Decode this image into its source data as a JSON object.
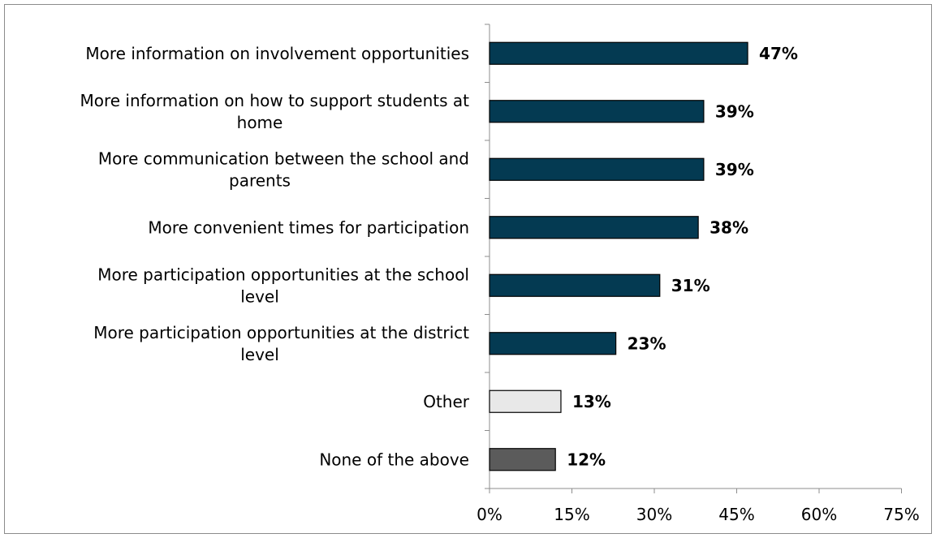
{
  "chart_data": {
    "type": "bar",
    "orientation": "horizontal",
    "title": "",
    "xlabel": "",
    "ylabel": "",
    "categories": [
      [
        "More information on involvement opportunities"
      ],
      [
        "More information on how to support students at",
        "home"
      ],
      [
        "More communication between the school and",
        "parents"
      ],
      [
        "More convenient times for participation"
      ],
      [
        "More participation opportunities at the school",
        "level"
      ],
      [
        "More participation opportunities at the district",
        "level"
      ],
      [
        "Other"
      ],
      [
        "None of the above"
      ]
    ],
    "values": [
      47,
      39,
      39,
      38,
      31,
      23,
      13,
      12
    ],
    "data_labels": [
      "47%",
      "39%",
      "39%",
      "38%",
      "31%",
      "23%",
      "13%",
      "12%"
    ],
    "bar_colors": [
      "#043a52",
      "#043a52",
      "#043a52",
      "#043a52",
      "#043a52",
      "#043a52",
      "#e8e8e8",
      "#5b5b5b"
    ],
    "xlim": [
      0,
      75
    ],
    "x_ticks": [
      0,
      15,
      30,
      45,
      60,
      75
    ],
    "x_tick_labels": [
      "0%",
      "15%",
      "30%",
      "45%",
      "60%",
      "75%"
    ],
    "grid": false,
    "legend": "none"
  }
}
